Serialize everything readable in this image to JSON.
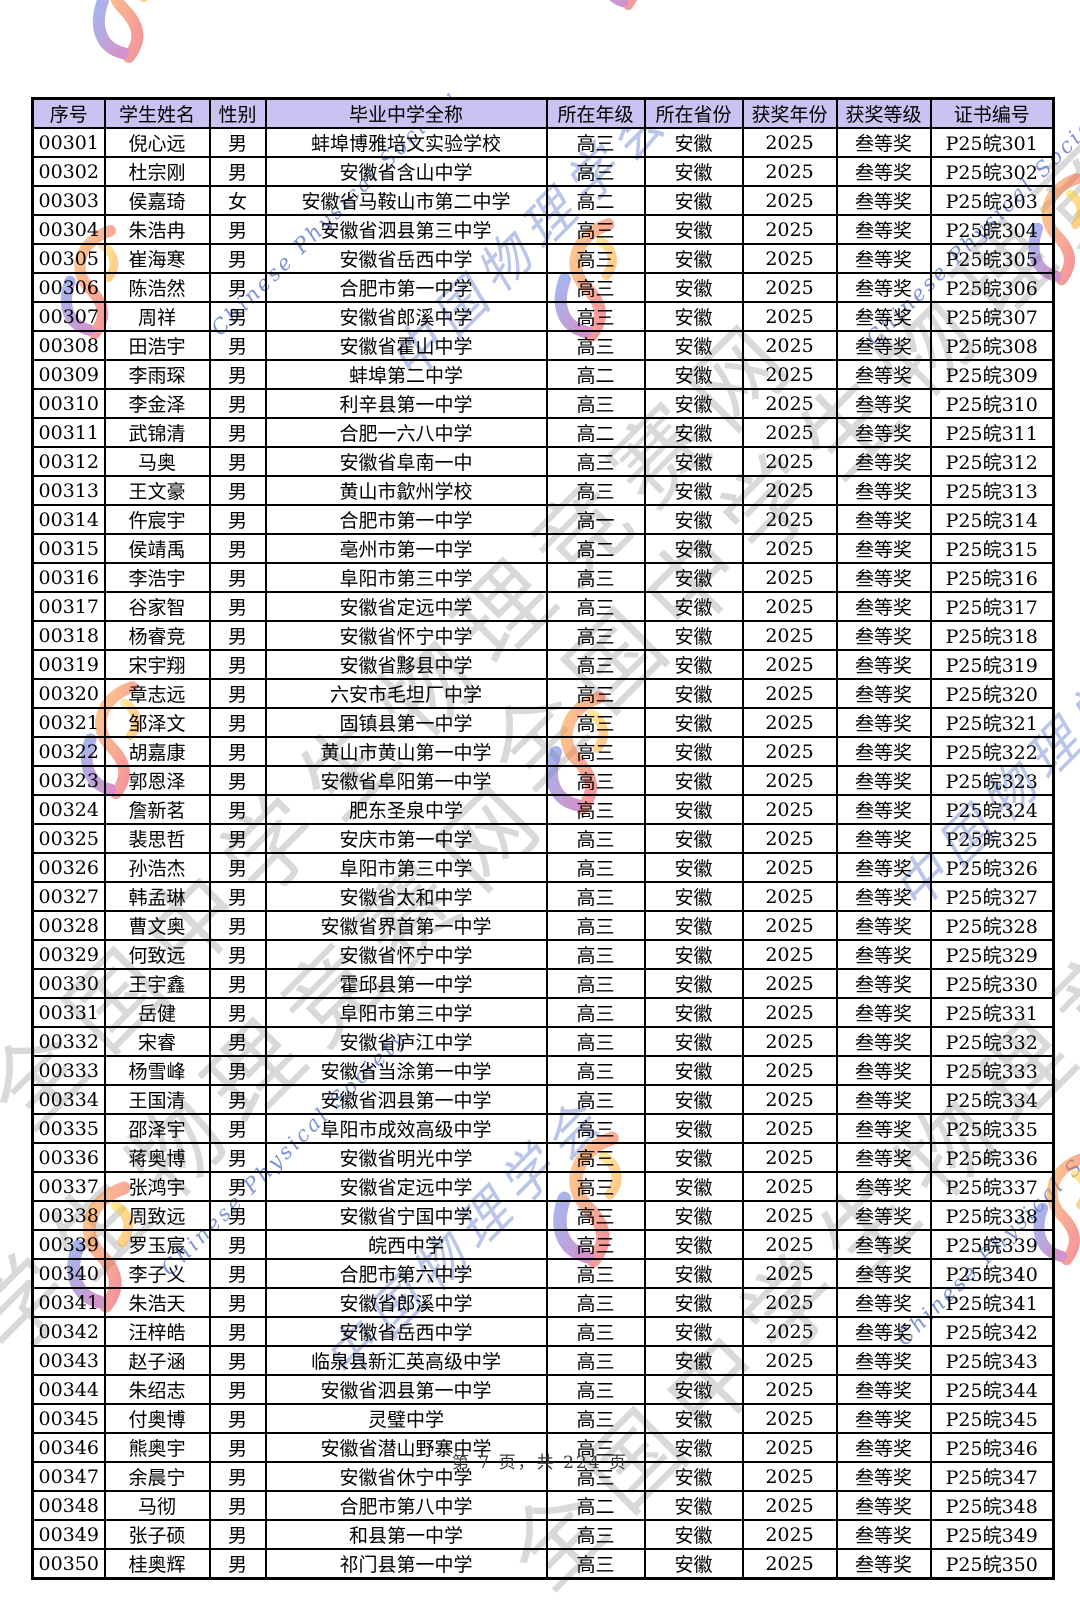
{
  "page": {
    "footer_label": "第 7 页，共 224 页"
  },
  "watermarks": {
    "site_text": "全国中学生物理竞赛网",
    "society_cn": "中国物理学会",
    "society_en": "Chinese Physical Society"
  },
  "colors": {
    "header_bg": "#c8c3f0",
    "table_border": "#000000",
    "watermark_gray": "#80808580",
    "watermark_blue": "#506ec8",
    "logo_orange": "#ff9d2e",
    "logo_red": "#e8344f",
    "logo_purple": "#b03a9e",
    "logo_blue": "#5f7ae0",
    "logo_yellow": "#ffd83a"
  },
  "table": {
    "headers": [
      "序号",
      "学生姓名",
      "性别",
      "毕业中学全称",
      "所在年级",
      "所在省份",
      "获奖年份",
      "获奖等级",
      "证书编号"
    ],
    "field_keys": [
      "serial",
      "student-name",
      "gender",
      "school",
      "grade",
      "province",
      "award-year",
      "award-level",
      "certificate-no"
    ],
    "rows": [
      [
        "00301",
        "倪心远",
        "男",
        "蚌埠博雅培文实验学校",
        "高三",
        "安徽",
        "2025",
        "叁等奖",
        "P25皖301"
      ],
      [
        "00302",
        "杜宗刚",
        "男",
        "安徽省含山中学",
        "高三",
        "安徽",
        "2025",
        "叁等奖",
        "P25皖302"
      ],
      [
        "00303",
        "侯嘉琦",
        "女",
        "安徽省马鞍山市第二中学",
        "高二",
        "安徽",
        "2025",
        "叁等奖",
        "P25皖303"
      ],
      [
        "00304",
        "朱浩冉",
        "男",
        "安徽省泗县第三中学",
        "高三",
        "安徽",
        "2025",
        "叁等奖",
        "P25皖304"
      ],
      [
        "00305",
        "崔海寒",
        "男",
        "安徽省岳西中学",
        "高三",
        "安徽",
        "2025",
        "叁等奖",
        "P25皖305"
      ],
      [
        "00306",
        "陈浩然",
        "男",
        "合肥市第一中学",
        "高三",
        "安徽",
        "2025",
        "叁等奖",
        "P25皖306"
      ],
      [
        "00307",
        "周祥",
        "男",
        "安徽省郎溪中学",
        "高三",
        "安徽",
        "2025",
        "叁等奖",
        "P25皖307"
      ],
      [
        "00308",
        "田浩宇",
        "男",
        "安徽省霍山中学",
        "高三",
        "安徽",
        "2025",
        "叁等奖",
        "P25皖308"
      ],
      [
        "00309",
        "李雨琛",
        "男",
        "蚌埠第二中学",
        "高二",
        "安徽",
        "2025",
        "叁等奖",
        "P25皖309"
      ],
      [
        "00310",
        "李金泽",
        "男",
        "利辛县第一中学",
        "高三",
        "安徽",
        "2025",
        "叁等奖",
        "P25皖310"
      ],
      [
        "00311",
        "武锦清",
        "男",
        "合肥一六八中学",
        "高二",
        "安徽",
        "2025",
        "叁等奖",
        "P25皖311"
      ],
      [
        "00312",
        "马奥",
        "男",
        "安徽省阜南一中",
        "高三",
        "安徽",
        "2025",
        "叁等奖",
        "P25皖312"
      ],
      [
        "00313",
        "王文豪",
        "男",
        "黄山市歙州学校",
        "高三",
        "安徽",
        "2025",
        "叁等奖",
        "P25皖313"
      ],
      [
        "00314",
        "仵宸宇",
        "男",
        "合肥市第一中学",
        "高一",
        "安徽",
        "2025",
        "叁等奖",
        "P25皖314"
      ],
      [
        "00315",
        "侯靖禹",
        "男",
        "亳州市第一中学",
        "高二",
        "安徽",
        "2025",
        "叁等奖",
        "P25皖315"
      ],
      [
        "00316",
        "李浩宇",
        "男",
        "阜阳市第三中学",
        "高三",
        "安徽",
        "2025",
        "叁等奖",
        "P25皖316"
      ],
      [
        "00317",
        "谷家智",
        "男",
        "安徽省定远中学",
        "高三",
        "安徽",
        "2025",
        "叁等奖",
        "P25皖317"
      ],
      [
        "00318",
        "杨睿竞",
        "男",
        "安徽省怀宁中学",
        "高三",
        "安徽",
        "2025",
        "叁等奖",
        "P25皖318"
      ],
      [
        "00319",
        "宋宇翔",
        "男",
        "安徽省黟县中学",
        "高三",
        "安徽",
        "2025",
        "叁等奖",
        "P25皖319"
      ],
      [
        "00320",
        "章志远",
        "男",
        "六安市毛坦厂中学",
        "高三",
        "安徽",
        "2025",
        "叁等奖",
        "P25皖320"
      ],
      [
        "00321",
        "邹泽文",
        "男",
        "固镇县第一中学",
        "高三",
        "安徽",
        "2025",
        "叁等奖",
        "P25皖321"
      ],
      [
        "00322",
        "胡嘉康",
        "男",
        "黄山市黄山第一中学",
        "高三",
        "安徽",
        "2025",
        "叁等奖",
        "P25皖322"
      ],
      [
        "00323",
        "郭恩泽",
        "男",
        "安徽省阜阳第一中学",
        "高三",
        "安徽",
        "2025",
        "叁等奖",
        "P25皖323"
      ],
      [
        "00324",
        "詹新茗",
        "男",
        "肥东圣泉中学",
        "高三",
        "安徽",
        "2025",
        "叁等奖",
        "P25皖324"
      ],
      [
        "00325",
        "裴思哲",
        "男",
        "安庆市第一中学",
        "高三",
        "安徽",
        "2025",
        "叁等奖",
        "P25皖325"
      ],
      [
        "00326",
        "孙浩杰",
        "男",
        "阜阳市第三中学",
        "高三",
        "安徽",
        "2025",
        "叁等奖",
        "P25皖326"
      ],
      [
        "00327",
        "韩孟琳",
        "男",
        "安徽省太和中学",
        "高三",
        "安徽",
        "2025",
        "叁等奖",
        "P25皖327"
      ],
      [
        "00328",
        "曹文奥",
        "男",
        "安徽省界首第一中学",
        "高三",
        "安徽",
        "2025",
        "叁等奖",
        "P25皖328"
      ],
      [
        "00329",
        "何致远",
        "男",
        "安徽省怀宁中学",
        "高三",
        "安徽",
        "2025",
        "叁等奖",
        "P25皖329"
      ],
      [
        "00330",
        "王宇鑫",
        "男",
        "霍邱县第一中学",
        "高三",
        "安徽",
        "2025",
        "叁等奖",
        "P25皖330"
      ],
      [
        "00331",
        "岳健",
        "男",
        "阜阳市第三中学",
        "高三",
        "安徽",
        "2025",
        "叁等奖",
        "P25皖331"
      ],
      [
        "00332",
        "宋睿",
        "男",
        "安徽省庐江中学",
        "高三",
        "安徽",
        "2025",
        "叁等奖",
        "P25皖332"
      ],
      [
        "00333",
        "杨雪峰",
        "男",
        "安徽省当涂第一中学",
        "高三",
        "安徽",
        "2025",
        "叁等奖",
        "P25皖333"
      ],
      [
        "00334",
        "王国清",
        "男",
        "安徽省泗县第一中学",
        "高三",
        "安徽",
        "2025",
        "叁等奖",
        "P25皖334"
      ],
      [
        "00335",
        "邵泽宇",
        "男",
        "阜阳市成效高级中学",
        "高三",
        "安徽",
        "2025",
        "叁等奖",
        "P25皖335"
      ],
      [
        "00336",
        "蒋奥博",
        "男",
        "安徽省明光中学",
        "高三",
        "安徽",
        "2025",
        "叁等奖",
        "P25皖336"
      ],
      [
        "00337",
        "张鸿宇",
        "男",
        "安徽省定远中学",
        "高三",
        "安徽",
        "2025",
        "叁等奖",
        "P25皖337"
      ],
      [
        "00338",
        "周致远",
        "男",
        "安徽省宁国中学",
        "高三",
        "安徽",
        "2025",
        "叁等奖",
        "P25皖338"
      ],
      [
        "00339",
        "罗玉宸",
        "男",
        "皖西中学",
        "高三",
        "安徽",
        "2025",
        "叁等奖",
        "P25皖339"
      ],
      [
        "00340",
        "李子义",
        "男",
        "合肥市第六中学",
        "高三",
        "安徽",
        "2025",
        "叁等奖",
        "P25皖340"
      ],
      [
        "00341",
        "朱浩天",
        "男",
        "安徽省郎溪中学",
        "高三",
        "安徽",
        "2025",
        "叁等奖",
        "P25皖341"
      ],
      [
        "00342",
        "汪梓皓",
        "男",
        "安徽省岳西中学",
        "高三",
        "安徽",
        "2025",
        "叁等奖",
        "P25皖342"
      ],
      [
        "00343",
        "赵子涵",
        "男",
        "临泉县新汇英高级中学",
        "高三",
        "安徽",
        "2025",
        "叁等奖",
        "P25皖343"
      ],
      [
        "00344",
        "朱绍志",
        "男",
        "安徽省泗县第一中学",
        "高三",
        "安徽",
        "2025",
        "叁等奖",
        "P25皖344"
      ],
      [
        "00345",
        "付奥博",
        "男",
        "灵璧中学",
        "高三",
        "安徽",
        "2025",
        "叁等奖",
        "P25皖345"
      ],
      [
        "00346",
        "熊奥宇",
        "男",
        "安徽省潜山野寨中学",
        "高三",
        "安徽",
        "2025",
        "叁等奖",
        "P25皖346"
      ],
      [
        "00347",
        "余晨宁",
        "男",
        "安徽省休宁中学",
        "高三",
        "安徽",
        "2025",
        "叁等奖",
        "P25皖347"
      ],
      [
        "00348",
        "马彻",
        "男",
        "合肥市第八中学",
        "高二",
        "安徽",
        "2025",
        "叁等奖",
        "P25皖348"
      ],
      [
        "00349",
        "张子硕",
        "男",
        "和县第一中学",
        "高三",
        "安徽",
        "2025",
        "叁等奖",
        "P25皖349"
      ],
      [
        "00350",
        "桂奥辉",
        "男",
        "祁门县第一中学",
        "高三",
        "安徽",
        "2025",
        "叁等奖",
        "P25皖350"
      ]
    ]
  }
}
